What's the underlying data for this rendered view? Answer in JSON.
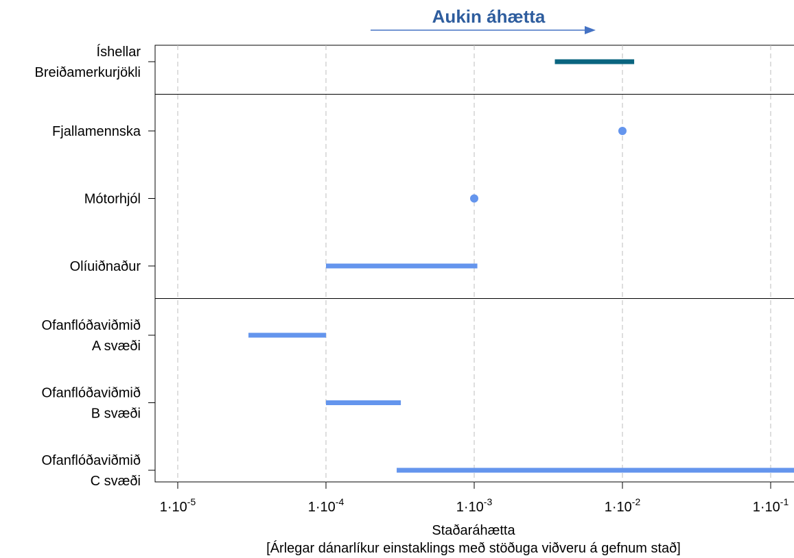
{
  "header": {
    "text": "Aukin áhætta",
    "color": "#2e5d9e",
    "arrow_color": "#4472c4"
  },
  "chart_data": {
    "type": "range",
    "xscale": "log",
    "xlim": [
      1e-05,
      0.1
    ],
    "xlabel": "Staðaráhætta",
    "xlabel_sub": "[Árlegar dánarlíkur einstaklings með stöðuga viðveru á gefnum stað]",
    "xticks": [
      {
        "value": 1e-05,
        "base": "1·10",
        "exp": "-5"
      },
      {
        "value": 0.0001,
        "base": "1·10",
        "exp": "-4"
      },
      {
        "value": 0.001,
        "base": "1·10",
        "exp": "-3"
      },
      {
        "value": 0.01,
        "base": "1·10",
        "exp": "-2"
      },
      {
        "value": 0.1,
        "base": "1·10",
        "exp": "-1"
      }
    ],
    "grid": "vertical-dashed",
    "groups": [
      {
        "rows": [
          {
            "label": [
              "Íshellar",
              "Breiðamerkurjökli"
            ],
            "min": 0.0035,
            "max": 0.012,
            "color": "#0a6580"
          }
        ]
      },
      {
        "rows": [
          {
            "label": [
              "Fjallamennska"
            ],
            "min": 0.01,
            "max": 0.01,
            "color": "#6495ed"
          },
          {
            "label": [
              "Mótorhjól"
            ],
            "min": 0.001,
            "max": 0.001,
            "color": "#6495ed"
          },
          {
            "label": [
              "Olíuiðnaður"
            ],
            "min": 0.0001,
            "max": 0.00105,
            "color": "#6495ed"
          }
        ]
      },
      {
        "rows": [
          {
            "label": [
              "Ofanflóðaviðmið",
              "A svæði"
            ],
            "min": 3e-05,
            "max": 0.0001,
            "color": "#6495ed"
          },
          {
            "label": [
              "Ofanflóðaviðmið",
              "B svæði"
            ],
            "min": 0.0001,
            "max": 0.00032,
            "color": "#6495ed"
          },
          {
            "label": [
              "Ofanflóðaviðmið",
              "C svæði"
            ],
            "min": 0.0003,
            "max": 0.15,
            "color": "#6495ed"
          }
        ]
      }
    ]
  }
}
